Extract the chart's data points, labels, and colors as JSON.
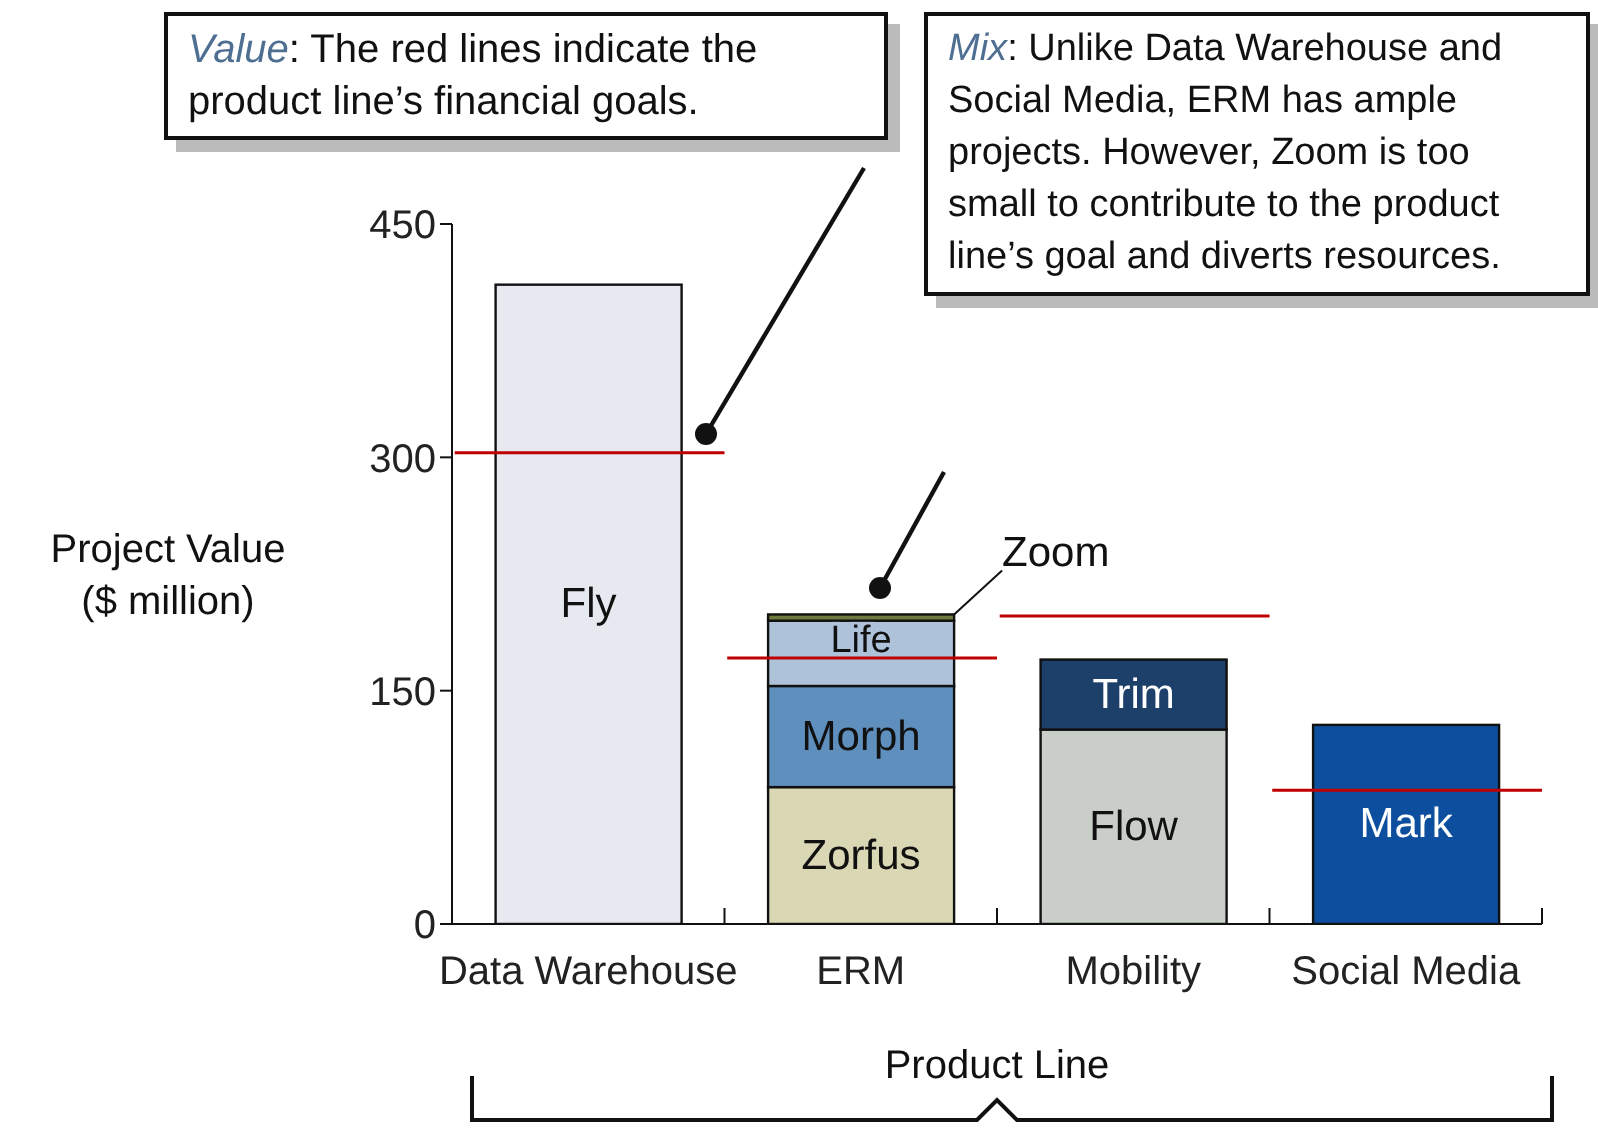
{
  "chart_data": {
    "type": "bar",
    "stacked": true,
    "ylabel": "Project Value ($ million)",
    "xlabel": "Product Line",
    "categories": [
      "Data Warehouse",
      "ERM",
      "Mobility",
      "Social Media"
    ],
    "ylim": [
      0,
      450
    ],
    "yticks": [
      0,
      150,
      300,
      450
    ],
    "grid": false,
    "series": [
      {
        "name": "Fly",
        "color": "#e6e9ef",
        "values": [
          411,
          null,
          null,
          null
        ]
      },
      {
        "name": "Zorfus",
        "color": "#dad7b4",
        "values": [
          null,
          88,
          null,
          null
        ]
      },
      {
        "name": "Flow",
        "color": "#c9cfc8",
        "values": [
          null,
          null,
          125,
          null
        ]
      },
      {
        "name": "Mark",
        "color": "#0d4f9e",
        "values": [
          null,
          null,
          null,
          128
        ]
      },
      {
        "name": "Morph",
        "color": "#5f8fbd",
        "values": [
          null,
          65,
          null,
          null
        ]
      },
      {
        "name": "Trim",
        "color": "#1d406a",
        "values": [
          null,
          null,
          45,
          null
        ]
      },
      {
        "name": "Life",
        "color": "#aec2da",
        "values": [
          null,
          42,
          null,
          null
        ]
      },
      {
        "name": "Zoom",
        "color": "#6f7a3e",
        "values": [
          null,
          4,
          null,
          null
        ]
      }
    ],
    "ref_lines": [
      {
        "axis": "y",
        "value": 303,
        "color": "#c00000"
      },
      {
        "axis": "y",
        "value": 171,
        "color": "#c00000"
      },
      {
        "axis": "y",
        "value": 198,
        "color": "#c00000"
      },
      {
        "axis": "y",
        "value": 86,
        "color": "#c00000"
      }
    ],
    "annotations": [
      "Value: The red lines indicate the product line’s financial goals.",
      "Mix: Unlike Data Warehouse and Social Media, ERM has ample projects. However, Zoom is too small to contribute to the product line’s goal and diverts resources."
    ]
  }
}
